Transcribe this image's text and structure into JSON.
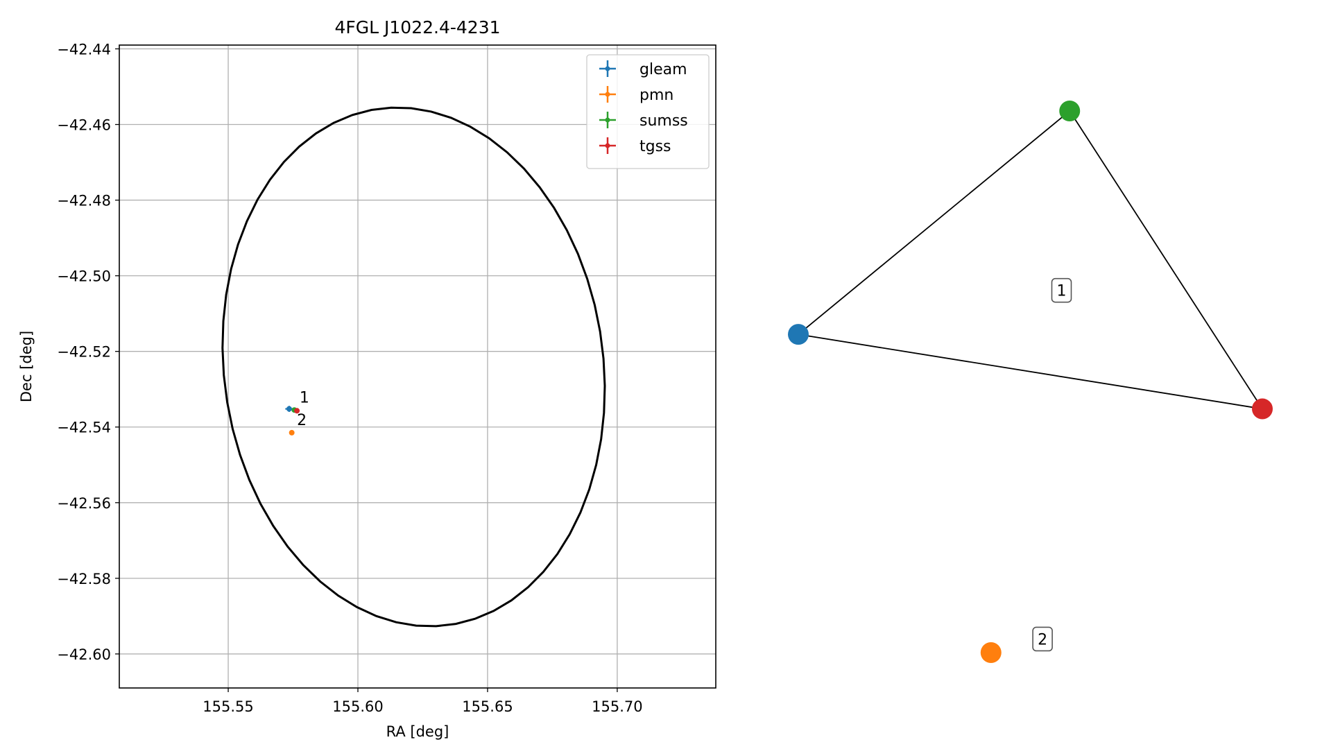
{
  "chart_data": [
    {
      "type": "scatter",
      "title": "4FGL J1022.4-4231",
      "xlabel": "RA [deg]",
      "ylabel": "Dec [deg]",
      "xlim": [
        155.508,
        155.738
      ],
      "ylim": [
        -42.609,
        -42.439
      ],
      "xticks": [
        155.55,
        155.6,
        155.65,
        155.7
      ],
      "xtick_labels": [
        "155.55",
        "155.60",
        "155.65",
        "155.70"
      ],
      "yticks": [
        -42.44,
        -42.46,
        -42.48,
        -42.5,
        -42.52,
        -42.54,
        -42.56,
        -42.58,
        -42.6
      ],
      "ytick_labels": [
        "−42.44",
        "−42.46",
        "−42.48",
        "−42.50",
        "−42.52",
        "−42.54",
        "−42.56",
        "−42.58",
        "−42.60"
      ],
      "grid": true,
      "legend_position": "top-right",
      "series": [
        {
          "name": "gleam",
          "color": "#1f77b4",
          "points": [
            {
              "x": 155.5735,
              "y": -42.5352,
              "xerr": 0.0015,
              "yerr": 0.0008
            }
          ]
        },
        {
          "name": "pmn",
          "color": "#ff7f0e",
          "points": [
            {
              "x": 155.5745,
              "y": -42.5415,
              "xerr": 0.0,
              "yerr": 0.0
            }
          ]
        },
        {
          "name": "sumss",
          "color": "#2ca02c",
          "points": [
            {
              "x": 155.5755,
              "y": -42.5355,
              "xerr": 0.0007,
              "yerr": 0.0005
            }
          ]
        },
        {
          "name": "tgss",
          "color": "#d62728",
          "points": [
            {
              "x": 155.5765,
              "y": -42.5357,
              "xerr": 0.0006,
              "yerr": 0.0004
            }
          ]
        }
      ],
      "ellipse": {
        "center": [
          155.6215,
          -42.5241
        ],
        "semi_major_deg": 0.0538,
        "semi_minor_deg": 0.069,
        "angle_deg": 10,
        "color": "#000000"
      },
      "annotations": [
        {
          "text": "1",
          "x": 155.5775,
          "y": -42.5335
        },
        {
          "text": "2",
          "x": 155.5765,
          "y": -42.5395
        }
      ]
    },
    {
      "type": "network",
      "nodes": [
        {
          "id": "gleam",
          "color": "#1f77b4",
          "x": -1.0,
          "y": 0.14
        },
        {
          "id": "sumss",
          "color": "#2ca02c",
          "x": 0.0,
          "y": 0.8
        },
        {
          "id": "tgss",
          "color": "#d62728",
          "x": 0.71,
          "y": -0.08
        },
        {
          "id": "pmn",
          "color": "#ff7f0e",
          "x": -0.29,
          "y": -0.8
        }
      ],
      "edges": [
        [
          "gleam",
          "sumss"
        ],
        [
          "sumss",
          "tgss"
        ],
        [
          "gleam",
          "tgss"
        ]
      ],
      "labels": [
        {
          "text": "1",
          "x": -0.03,
          "y": 0.27
        },
        {
          "text": "2",
          "x": -0.1,
          "y": -0.76
        }
      ]
    }
  ]
}
